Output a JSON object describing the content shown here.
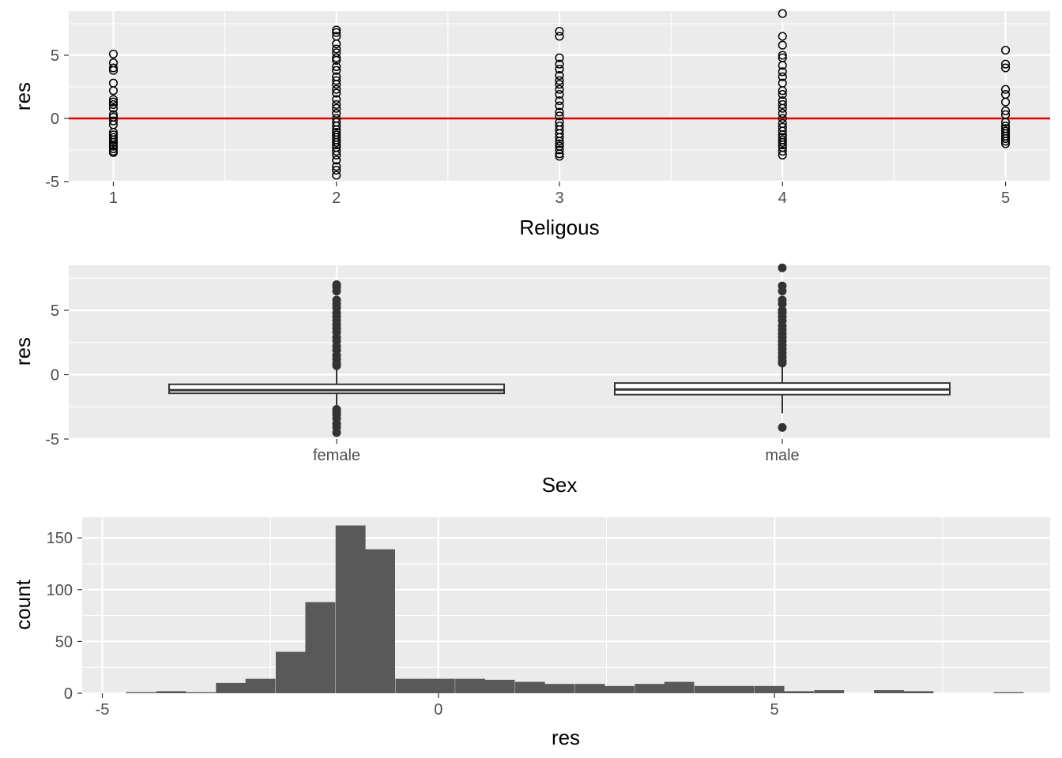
{
  "chart_data": [
    {
      "type": "scatter",
      "xlabel": "Religous",
      "ylabel": "res",
      "xlim": [
        0.8,
        5.2
      ],
      "ylim": [
        -5,
        8.5
      ],
      "x_ticks": [
        "1",
        "2",
        "3",
        "4",
        "5"
      ],
      "y_ticks": [
        "-5",
        "0",
        "5"
      ],
      "grid": true,
      "point_style": "open-circle",
      "reference_line": {
        "y": 0,
        "color": "#e00000"
      },
      "points": [
        {
          "x": 1,
          "y": [
            5.1,
            4.4,
            4.0,
            3.8,
            2.8,
            2.2,
            1.5,
            1.3,
            1.1,
            0.8,
            0.3,
            0.1,
            -0.2,
            -0.5,
            -1.1,
            -1.3,
            -1.5,
            -1.7,
            -1.9,
            -2.1,
            -2.2,
            -2.4,
            -2.6,
            -2.7
          ]
        },
        {
          "x": 2,
          "y": [
            7.0,
            6.8,
            6.5,
            5.9,
            5.5,
            5.2,
            4.8,
            4.6,
            4.1,
            3.8,
            3.3,
            3.0,
            2.7,
            2.3,
            2.0,
            1.5,
            1.1,
            0.8,
            0.4,
            0.0,
            -0.3,
            -0.6,
            -0.9,
            -1.1,
            -1.3,
            -1.5,
            -1.7,
            -1.9,
            -2.1,
            -2.3,
            -2.6,
            -2.9,
            -3.3,
            -3.8,
            -4.1,
            -4.5
          ]
        },
        {
          "x": 3,
          "y": [
            6.9,
            6.5,
            4.8,
            4.3,
            3.9,
            3.4,
            3.0,
            2.7,
            2.3,
            1.9,
            1.4,
            1.0,
            0.5,
            0.2,
            -0.3,
            -0.6,
            -0.9,
            -1.2,
            -1.5,
            -1.8,
            -2.0,
            -2.2,
            -2.5,
            -2.8,
            -3.0
          ]
        },
        {
          "x": 4,
          "y": [
            8.3,
            6.5,
            5.8,
            5.0,
            4.8,
            4.2,
            3.7,
            3.3,
            2.8,
            2.2,
            1.9,
            1.4,
            1.1,
            0.8,
            0.4,
            0.0,
            -0.4,
            -0.7,
            -1.0,
            -1.3,
            -1.5,
            -1.7,
            -1.9,
            -2.1,
            -2.3,
            -2.6,
            -2.9
          ]
        },
        {
          "x": 5,
          "y": [
            5.4,
            4.3,
            4.0,
            2.3,
            1.9,
            1.3,
            0.6,
            0.3,
            -0.3,
            -0.6,
            -0.8,
            -1.0,
            -1.2,
            -1.4,
            -1.6,
            -1.8,
            -2.0
          ]
        }
      ]
    },
    {
      "type": "boxplot",
      "xlabel": "Sex",
      "ylabel": "res",
      "ylim": [
        -5,
        8.5
      ],
      "y_ticks": [
        "-5",
        "0",
        "5"
      ],
      "categories": [
        "female",
        "male"
      ],
      "boxes": [
        {
          "q1": -1.45,
          "median": -1.2,
          "q3": -0.75,
          "whisker_low": -2.6,
          "whisker_high": 0.6,
          "outliers": [
            7.0,
            6.8,
            6.5,
            5.8,
            5.5,
            5.2,
            4.8,
            4.5,
            4.2,
            3.9,
            3.6,
            3.3,
            2.9,
            2.6,
            2.2,
            1.9,
            1.5,
            1.2,
            0.9,
            0.7,
            -2.7,
            -2.9,
            -3.1,
            -3.4,
            -3.8,
            -4.1,
            -4.5
          ]
        },
        {
          "q1": -1.55,
          "median": -1.15,
          "q3": -0.65,
          "whisker_low": -3.0,
          "whisker_high": 0.7,
          "outliers": [
            8.3,
            6.9,
            6.5,
            5.8,
            5.5,
            5.0,
            4.8,
            4.5,
            4.2,
            3.8,
            3.5,
            3.2,
            2.9,
            2.6,
            2.3,
            2.0,
            1.7,
            1.4,
            1.1,
            0.9,
            -4.1
          ]
        }
      ]
    },
    {
      "type": "bar",
      "subtype": "histogram",
      "xlabel": "res",
      "ylabel": "count",
      "xlim": [
        -5.3,
        9.1
      ],
      "ylim": [
        0,
        170
      ],
      "x_ticks": [
        "-5",
        "0",
        "5"
      ],
      "y_ticks": [
        "0",
        "50",
        "100",
        "150"
      ],
      "bin_width": 0.445,
      "bars": [
        {
          "start": -4.65,
          "count": 1
        },
        {
          "start": -4.2,
          "count": 2
        },
        {
          "start": -3.76,
          "count": 1
        },
        {
          "start": -3.31,
          "count": 10
        },
        {
          "start": -2.87,
          "count": 14
        },
        {
          "start": -2.42,
          "count": 40
        },
        {
          "start": -1.98,
          "count": 88
        },
        {
          "start": -1.53,
          "count": 162
        },
        {
          "start": -1.09,
          "count": 139
        },
        {
          "start": -0.64,
          "count": 14
        },
        {
          "start": -0.2,
          "count": 14
        },
        {
          "start": 0.25,
          "count": 14
        },
        {
          "start": 0.69,
          "count": 13
        },
        {
          "start": 1.14,
          "count": 11
        },
        {
          "start": 1.58,
          "count": 9
        },
        {
          "start": 2.03,
          "count": 9
        },
        {
          "start": 2.47,
          "count": 7
        },
        {
          "start": 2.92,
          "count": 9
        },
        {
          "start": 3.36,
          "count": 11
        },
        {
          "start": 3.81,
          "count": 7
        },
        {
          "start": 4.25,
          "count": 7
        },
        {
          "start": 4.7,
          "count": 7
        },
        {
          "start": 5.14,
          "count": 2
        },
        {
          "start": 5.59,
          "count": 3
        },
        {
          "start": 6.03,
          "count": 0
        },
        {
          "start": 6.48,
          "count": 3
        },
        {
          "start": 6.92,
          "count": 2
        },
        {
          "start": 7.37,
          "count": 0
        },
        {
          "start": 7.81,
          "count": 0
        },
        {
          "start": 8.26,
          "count": 1
        }
      ]
    }
  ],
  "colors": {
    "panel_bg": "#ebebeb",
    "grid_major": "#ffffff",
    "tick_text": "#4d4d4d",
    "point": "#000000",
    "outlier": "#333333",
    "hist_fill": "#595959",
    "ref_line": "#e00000"
  }
}
